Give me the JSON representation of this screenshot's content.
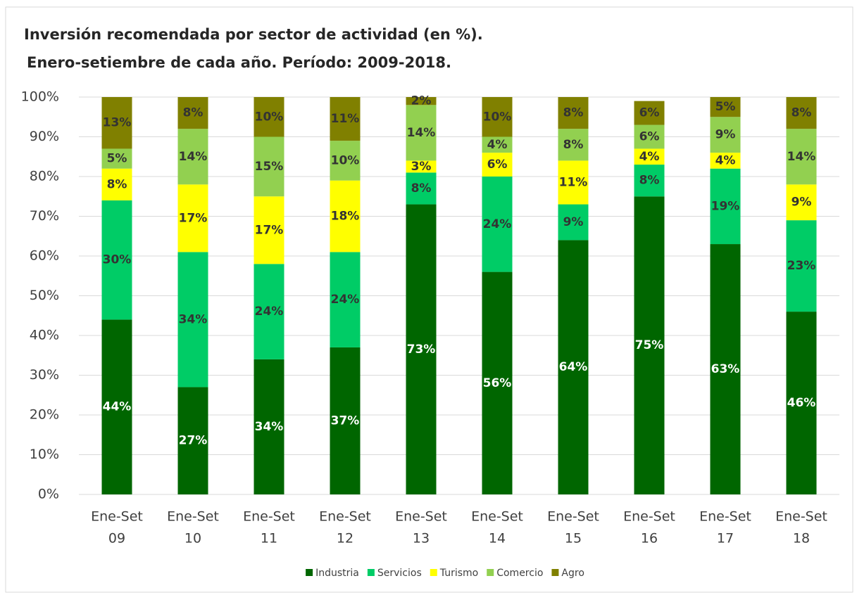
{
  "chart_data": {
    "type": "stacked_bar",
    "title": "Inversión recomendada por sector de actividad (en %).",
    "subtitle": "Enero-setiembre de cada año. Período: 2009-2018.",
    "categories": [
      [
        "Ene-Set",
        "09"
      ],
      [
        "Ene-Set",
        "10"
      ],
      [
        "Ene-Set",
        "11"
      ],
      [
        "Ene-Set",
        "12"
      ],
      [
        "Ene-Set",
        "13"
      ],
      [
        "Ene-Set",
        "14"
      ],
      [
        "Ene-Set",
        "15"
      ],
      [
        "Ene-Set",
        "16"
      ],
      [
        "Ene-Set",
        "17"
      ],
      [
        "Ene-Set",
        "18"
      ]
    ],
    "series": [
      {
        "name": "Industria",
        "color": "#006600",
        "label_color": "#ffffff",
        "values": [
          44,
          27,
          34,
          37,
          73,
          56,
          64,
          75,
          63,
          46
        ],
        "value_labels": [
          "44%",
          "27%",
          "34%",
          "37%",
          "73%",
          "56%",
          "64%",
          "75%",
          "63%",
          "46%"
        ]
      },
      {
        "name": "Servicios",
        "color": "#00cc66",
        "label_color": "#333333",
        "values": [
          30,
          34,
          24,
          24,
          8,
          24,
          9,
          8,
          19,
          23
        ],
        "value_labels": [
          "30%",
          "34%",
          "24%",
          "24%",
          "8%",
          "24%",
          "9%",
          "8%",
          "19%",
          "23%"
        ]
      },
      {
        "name": "Turismo",
        "color": "#ffff00",
        "label_color": "#333333",
        "values": [
          8,
          17,
          17,
          18,
          3,
          6,
          11,
          4,
          4,
          9
        ],
        "value_labels": [
          "8%",
          "17%",
          "17%",
          "18%",
          "3%",
          "6%",
          "11%",
          "4%",
          "4%",
          "9%"
        ]
      },
      {
        "name": "Comercio",
        "color": "#92d050",
        "label_color": "#333333",
        "values": [
          5,
          14,
          15,
          10,
          14,
          4,
          8,
          6,
          9,
          14
        ],
        "value_labels": [
          "5%",
          "14%",
          "15%",
          "10%",
          "14%",
          "4%",
          "8%",
          "6%",
          "9%",
          "14%"
        ]
      },
      {
        "name": "Agro",
        "color": "#808000",
        "label_color": "#333333",
        "values": [
          13,
          8,
          10,
          11,
          2,
          10,
          8,
          6,
          5,
          8
        ],
        "value_labels": [
          "13%",
          "8%",
          "10%",
          "11%",
          "2%",
          "10%",
          "8%",
          "6%",
          "5%",
          "8%"
        ]
      }
    ],
    "ylim": [
      0,
      100
    ],
    "yticks": [
      {
        "value": 0,
        "label": "0%"
      },
      {
        "value": 10,
        "label": "10%"
      },
      {
        "value": 20,
        "label": "20%"
      },
      {
        "value": 30,
        "label": "30%"
      },
      {
        "value": 40,
        "label": "40%"
      },
      {
        "value": 50,
        "label": "50%"
      },
      {
        "value": 60,
        "label": "60%"
      },
      {
        "value": 70,
        "label": "70%"
      },
      {
        "value": 80,
        "label": "80%"
      },
      {
        "value": 90,
        "label": "90%"
      },
      {
        "value": 100,
        "label": "100%"
      }
    ],
    "grid": true,
    "legend": "bottom"
  }
}
